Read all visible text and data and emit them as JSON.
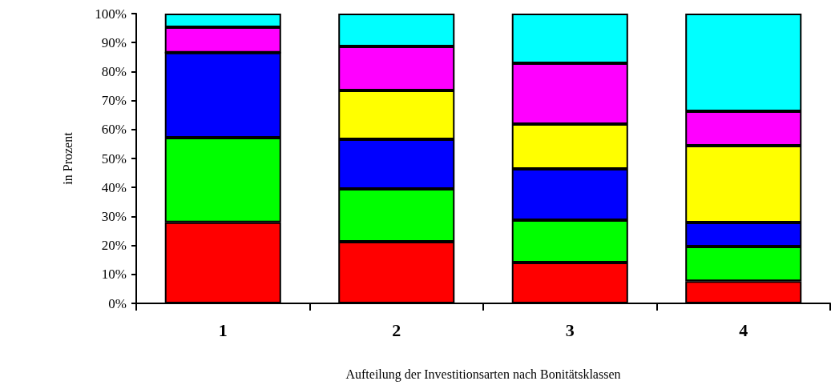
{
  "chart_data": {
    "type": "bar",
    "stacked": true,
    "xlabel": "Aufteilung der Investitionsarten nach Bonitätsklassen",
    "ylabel": "in Prozent",
    "categories": [
      "1",
      "2",
      "3",
      "4"
    ],
    "series": [
      {
        "color": "#ff0000",
        "values": [
          28,
          21.3,
          14.1,
          7.7
        ]
      },
      {
        "color": "#00ff00",
        "values": [
          29.2,
          18.2,
          14.6,
          11.9
        ]
      },
      {
        "color": "#0000ff",
        "values": [
          29.3,
          17.1,
          17.7,
          8.3
        ]
      },
      {
        "color": "#ffff00",
        "values": [
          0,
          16.9,
          15.5,
          26.5
        ]
      },
      {
        "color": "#ff00ff",
        "values": [
          8.8,
          15.2,
          21,
          11.9
        ]
      },
      {
        "color": "#00ffff",
        "values": [
          4.7,
          11.3,
          17.1,
          33.7
        ]
      }
    ],
    "ylim": [
      0,
      100
    ],
    "yticks": [
      {
        "value": 0,
        "label": "0%"
      },
      {
        "value": 10,
        "label": "10%"
      },
      {
        "value": 20,
        "label": "20%"
      },
      {
        "value": 30,
        "label": "30%"
      },
      {
        "value": 40,
        "label": "40%"
      },
      {
        "value": 50,
        "label": "50%"
      },
      {
        "value": 60,
        "label": "60%"
      },
      {
        "value": 70,
        "label": "70%"
      },
      {
        "value": 80,
        "label": "80%"
      },
      {
        "value": 90,
        "label": "90%"
      },
      {
        "value": 100,
        "label": "100%"
      }
    ],
    "grid": false
  }
}
